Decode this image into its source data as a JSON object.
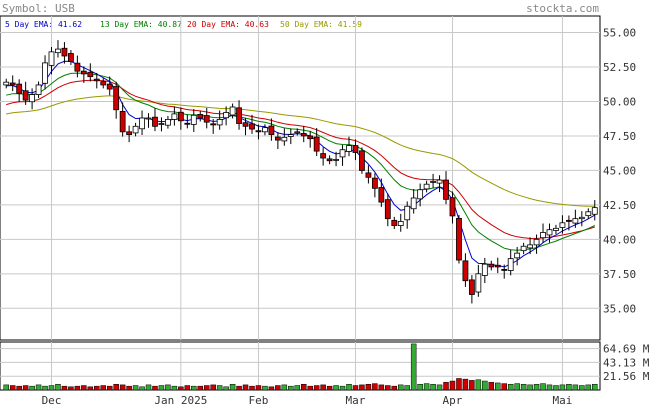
{
  "header": {
    "symbol_text": "Symbol: USB",
    "site_name": "stockta.com"
  },
  "legend": [
    {
      "label": "5 Day EMA: 41.62",
      "color": "#0000cc"
    },
    {
      "label": "13 Day EMA: 40.87",
      "color": "#008000"
    },
    {
      "label": "20 Day EMA: 40.63",
      "color": "#cc0000"
    },
    {
      "label": "50 Day EMA: 41.59",
      "color": "#999900"
    }
  ],
  "colors": {
    "up": "#ffffff",
    "down": "#cc0000",
    "volume_up": "#33aa33",
    "volume_down": "#cc0000",
    "grid": "#c8c8c8",
    "frame": "#000000",
    "ema5": "#0000cc",
    "ema13": "#008000",
    "ema20": "#cc0000",
    "ema50": "#999900"
  },
  "chart_data": {
    "type": "candlestick",
    "price_axis": {
      "ticks": [
        35.0,
        37.5,
        40.0,
        42.5,
        45.0,
        47.5,
        50.0,
        52.5,
        55.0
      ],
      "tick_labels": [
        "35.00",
        "37.50",
        "40.00",
        "42.50",
        "45.00",
        "47.50",
        "50.00",
        "52.50",
        "55.00"
      ],
      "range": [
        32.7,
        56.2
      ]
    },
    "volume_axis": {
      "ticks": [
        21.56,
        43.13,
        64.69
      ],
      "tick_labels": [
        "21.56 M",
        "43.13 M",
        "64.69 M"
      ],
      "range": [
        0,
        75
      ]
    },
    "x_labels": [
      {
        "label": "Dec",
        "index": 7
      },
      {
        "label": "Jan 2025",
        "index": 27
      },
      {
        "label": "Feb",
        "index": 39
      },
      {
        "label": "Mar",
        "index": 54
      },
      {
        "label": "Apr",
        "index": 69
      },
      {
        "label": "Mai",
        "index": 86
      }
    ],
    "closes": [
      51.4,
      51.2,
      50.6,
      50.1,
      50.5,
      51.2,
      52.8,
      53.6,
      53.8,
      53.3,
      52.9,
      52.2,
      52.0,
      51.8,
      51.5,
      51.2,
      50.9,
      49.4,
      47.8,
      47.6,
      48.2,
      48.8,
      48.8,
      48.2,
      48.4,
      48.7,
      49.1,
      48.6,
      48.4,
      49.0,
      48.8,
      48.5,
      48.3,
      48.7,
      49.2,
      49.6,
      48.4,
      48.2,
      48.0,
      47.8,
      48.1,
      47.6,
      47.2,
      47.4,
      47.6,
      47.8,
      47.5,
      47.3,
      46.4,
      45.9,
      45.7,
      45.8,
      46.5,
      46.8,
      46.3,
      45.0,
      44.5,
      43.7,
      42.7,
      41.5,
      41.0,
      41.3,
      42.4,
      43.0,
      43.6,
      44.0,
      44.2,
      44.3,
      42.9,
      41.7,
      38.5,
      37.0,
      36.0,
      37.5,
      38.2,
      38.0,
      38.0,
      37.8,
      38.6,
      39.0,
      39.5,
      39.6,
      40.0,
      40.5,
      40.7,
      40.8,
      41.2,
      41.3,
      41.5,
      41.6,
      42.0,
      42.3
    ],
    "volume_m": [
      8,
      7,
      6,
      7,
      6,
      8,
      6,
      7,
      9,
      6,
      5,
      6,
      7,
      5,
      6,
      7,
      6,
      9,
      8,
      6,
      7,
      5,
      8,
      6,
      7,
      8,
      6,
      5,
      7,
      6,
      6,
      7,
      8,
      7,
      5,
      9,
      6,
      8,
      6,
      7,
      6,
      5,
      7,
      8,
      6,
      7,
      9,
      6,
      7,
      8,
      6,
      7,
      6,
      9,
      7,
      8,
      9,
      10,
      8,
      7,
      6,
      8,
      7,
      8,
      9,
      10,
      9,
      8,
      12,
      14,
      18,
      17,
      15,
      16,
      14,
      12,
      11,
      10,
      9,
      10,
      9,
      8,
      9,
      10,
      8,
      7,
      8,
      9,
      8,
      7,
      8,
      9
    ],
    "volume_spike": {
      "index": 63,
      "value_m": 72
    }
  }
}
